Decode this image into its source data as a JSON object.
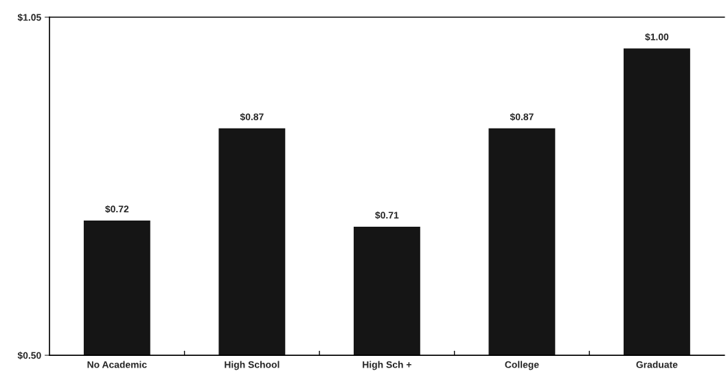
{
  "chart_data": {
    "type": "bar",
    "categories": [
      "No Academic",
      "High School",
      "High Sch +",
      "College",
      "Graduate"
    ],
    "values": [
      0.72,
      0.87,
      0.71,
      0.87,
      1.0
    ],
    "value_labels": [
      "$0.72",
      "$0.87",
      "$0.71",
      "$0.87",
      "$1.00"
    ],
    "color": "#151515",
    "ylim": [
      0.5,
      1.05
    ],
    "yticks": [
      {
        "value": 0.5,
        "label": "$0.50"
      },
      {
        "value": 1.05,
        "label": "$1.05"
      }
    ],
    "grid": false,
    "legend": false
  }
}
